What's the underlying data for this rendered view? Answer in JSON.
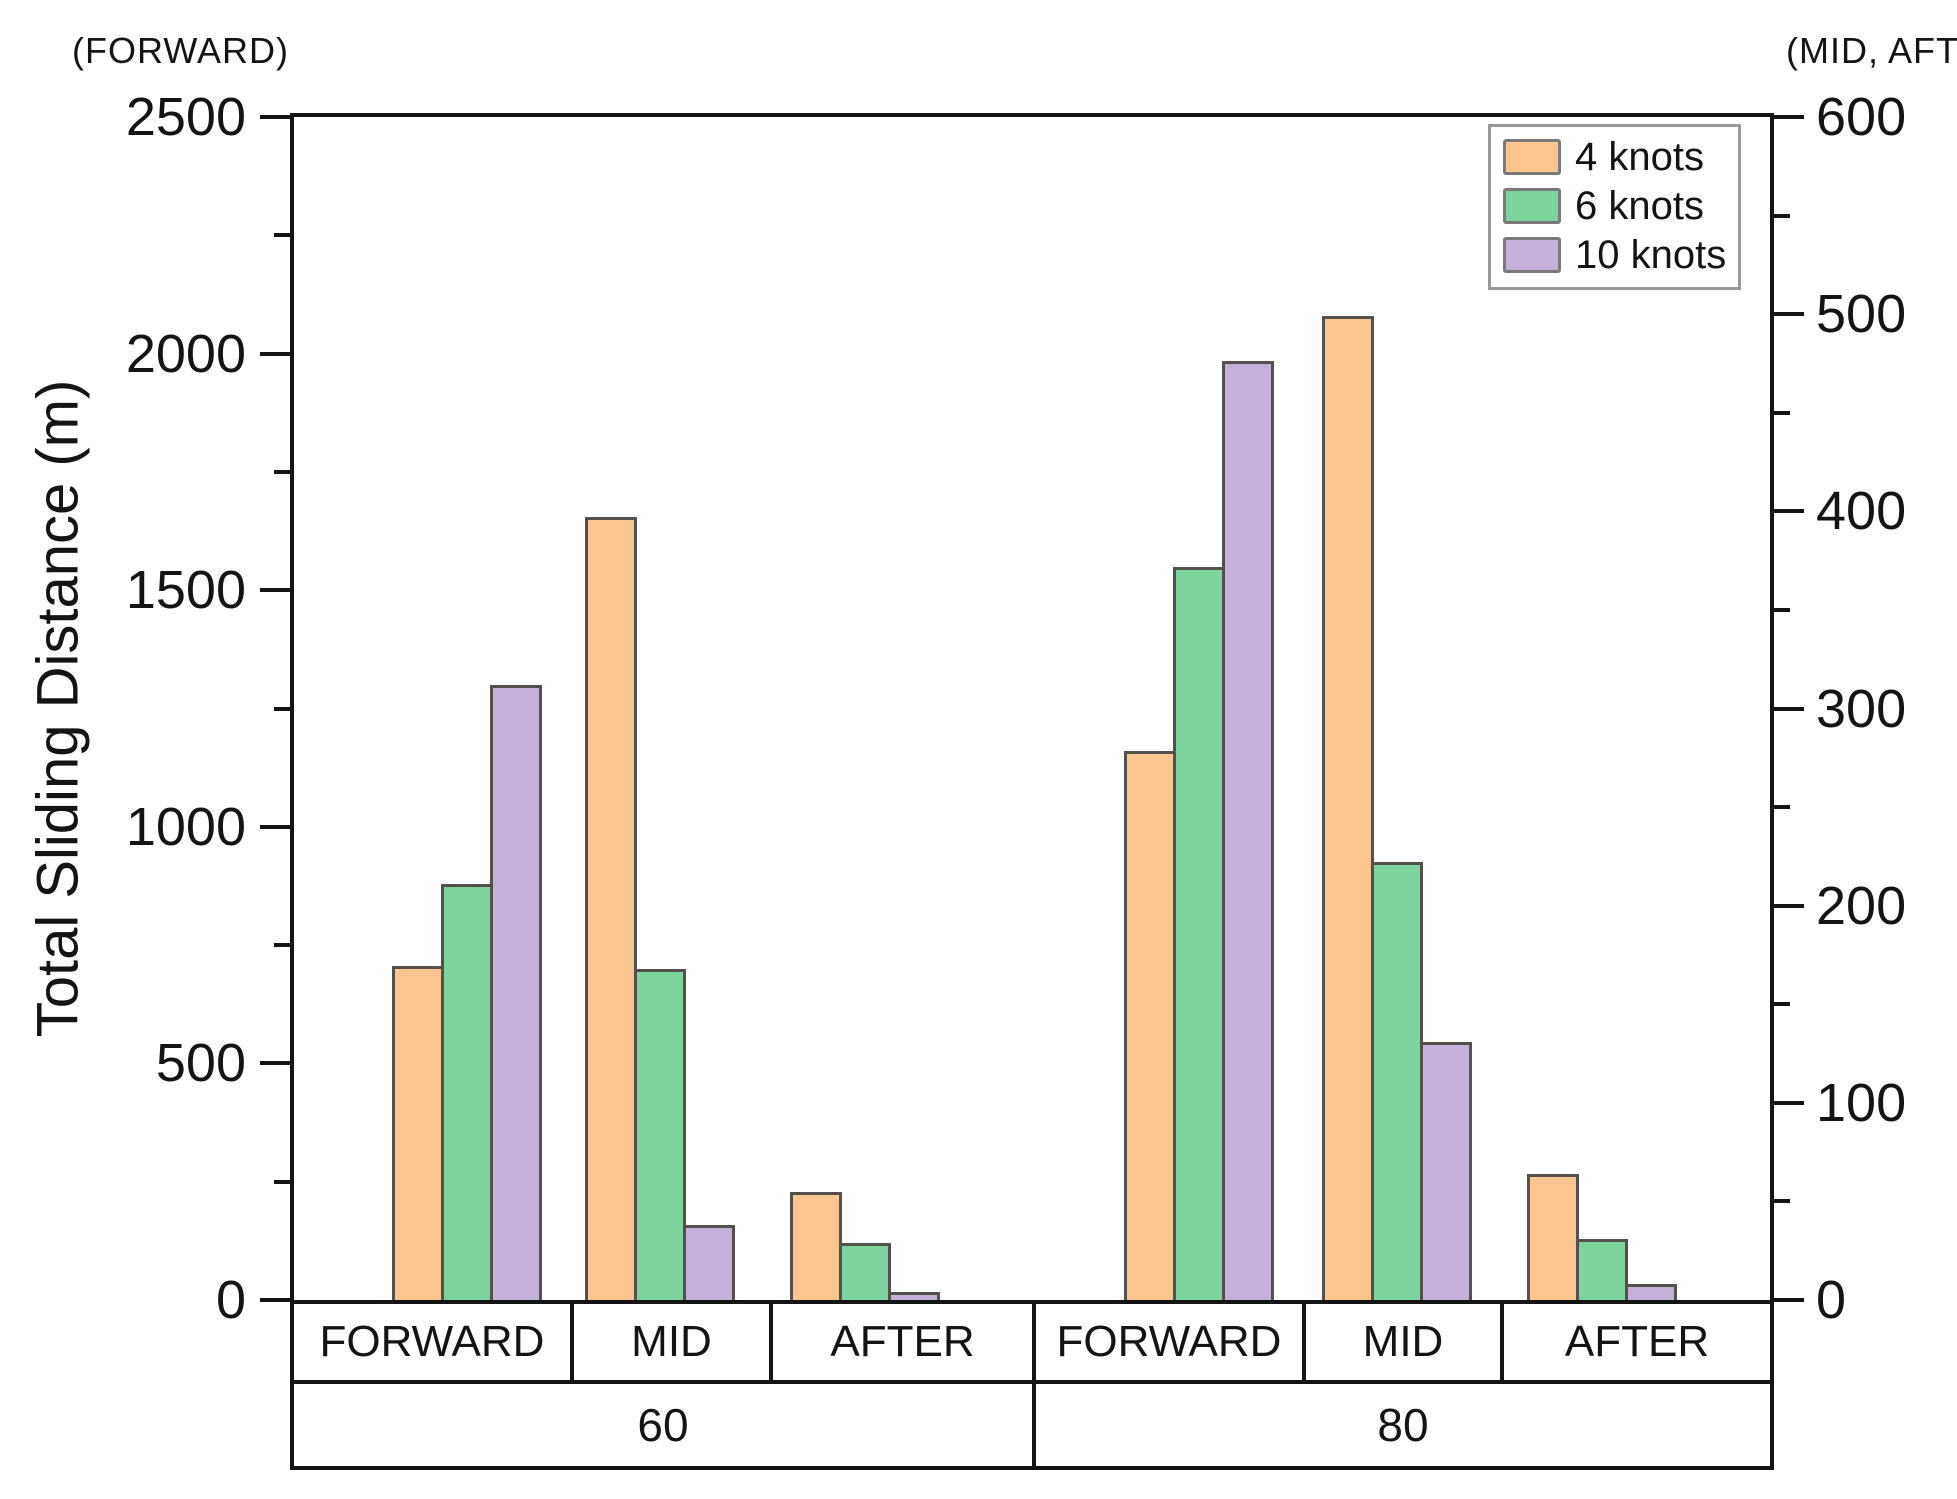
{
  "annotations": {
    "left_axis_note": "(FORWARD)",
    "right_axis_note": "(MID, AFT)"
  },
  "chart_data": {
    "type": "bar",
    "title": "",
    "ylabel": "Total Sliding Distance (m)",
    "legend_position": "top-right-inside",
    "grid": false,
    "axes": {
      "left": {
        "note": "(FORWARD)",
        "max": 2500,
        "min": 0,
        "major_step": 500,
        "minor_step": 250,
        "tick_labels": [
          0,
          500,
          1000,
          1500,
          2000,
          2500
        ]
      },
      "right": {
        "note": "(MID, AFT)",
        "max": 600,
        "min": 0,
        "major_step": 100,
        "minor_step": 50,
        "tick_labels": [
          0,
          100,
          200,
          300,
          400,
          500,
          600
        ]
      }
    },
    "series": [
      {
        "name": "4 knots",
        "color": "#FBC58F"
      },
      {
        "name": "6 knots",
        "color": "#7DD59D"
      },
      {
        "name": "10 knots",
        "color": "#C5B0D9"
      }
    ],
    "groups": [
      {
        "speed": "60",
        "position": "FORWARD",
        "axis": "left",
        "values": [
          705,
          880,
          1300
        ],
        "center_frac": 0.119,
        "cell": [
          0,
          0.187
        ]
      },
      {
        "speed": "60",
        "position": "MID",
        "axis": "right",
        "values": [
          397,
          168,
          38
        ],
        "center_frac": 0.25,
        "cell": [
          0.187,
          0.322
        ]
      },
      {
        "speed": "60",
        "position": "AFTER",
        "axis": "right",
        "values": [
          55,
          29,
          4
        ],
        "center_frac": 0.389,
        "cell": [
          0.322,
          0.5
        ]
      },
      {
        "speed": "80",
        "position": "FORWARD",
        "axis": "left",
        "values": [
          1160,
          1550,
          1985
        ],
        "center_frac": 0.615,
        "cell": [
          0.5,
          0.683
        ]
      },
      {
        "speed": "80",
        "position": "MID",
        "axis": "right",
        "values": [
          499,
          222,
          131
        ],
        "center_frac": 0.749,
        "cell": [
          0.683,
          0.817
        ]
      },
      {
        "speed": "80",
        "position": "AFTER",
        "axis": "right",
        "values": [
          64,
          31,
          8
        ],
        "center_frac": 0.888,
        "cell": [
          0.817,
          1
        ]
      }
    ],
    "speed_cells": [
      {
        "label": "60",
        "span": [
          0,
          0.5
        ]
      },
      {
        "label": "80",
        "span": [
          0.5,
          1
        ]
      }
    ]
  },
  "colors": {
    "axis_line": "#141414",
    "bar_border": "#54504b",
    "legend_border": "#9a9a9a"
  }
}
